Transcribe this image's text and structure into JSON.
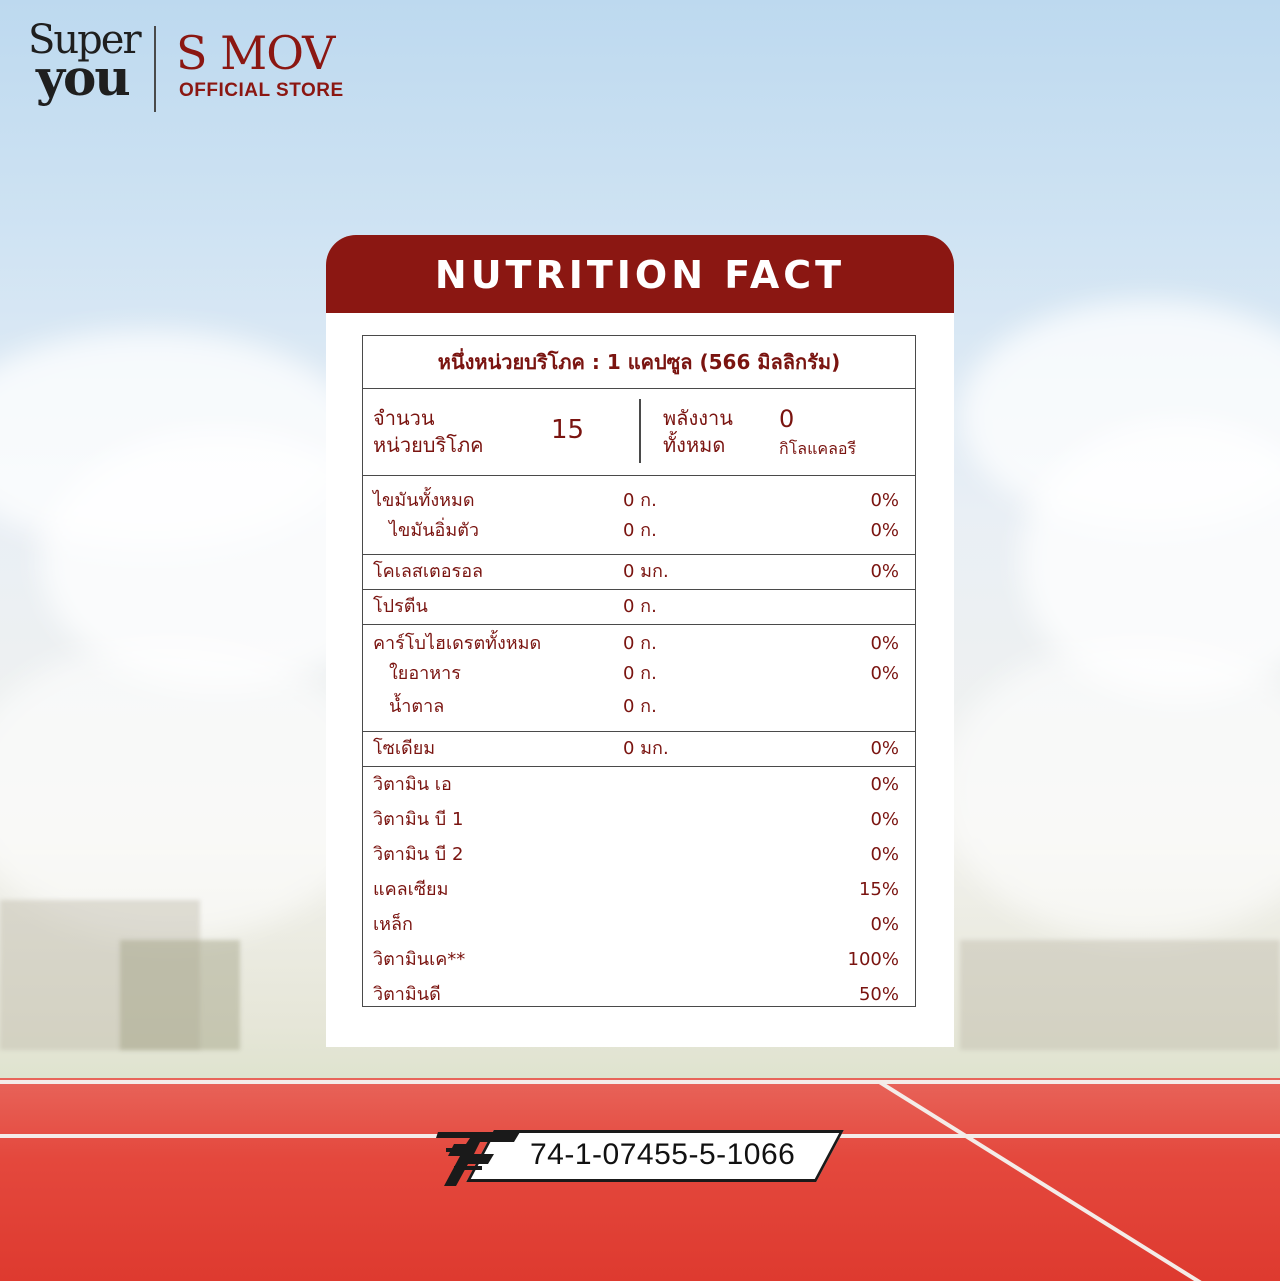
{
  "brand": {
    "superyou_line1": "Super",
    "superyou_line2": "you",
    "smov": "S MOV",
    "store": "OFFICIAL STORE"
  },
  "nutrition": {
    "title": "NUTRITION FACT",
    "serving_size": "หนึ่งหน่วยบริโภค :  1 แคปซูล (566 มิลลิกรัม)",
    "servings_label_1": "จำนวน",
    "servings_label_2": "หน่วยบริโภค",
    "servings_value": "15",
    "energy_label_1": "พลังงาน",
    "energy_label_2": "ทั้งหมด",
    "energy_value": "0",
    "energy_unit": "กิโลแคลอรี",
    "fat": [
      {
        "name": "ไขมันทั้งหมด",
        "amount": "0 ก.",
        "percent": "0%"
      },
      {
        "name": "ไขมันอิ่มตัว",
        "amount": "0 ก.",
        "percent": "0%"
      }
    ],
    "cholesterol": {
      "name": "โคเลสเตอรอล",
      "amount": "0 มก.",
      "percent": "0%"
    },
    "protein": {
      "name": "โปรตีน",
      "amount": "0 ก.",
      "percent": ""
    },
    "carbs": [
      {
        "name": "คาร์โบไฮเดรตทั้งหมด",
        "amount": "0 ก.",
        "percent": "0%"
      },
      {
        "name": "ใยอาหาร",
        "amount": "0 ก.",
        "percent": "0%"
      },
      {
        "name": "น้ำตาล",
        "amount": "0 ก.",
        "percent": ""
      }
    ],
    "sodium": {
      "name": "โซเดียม",
      "amount": "0 มก.",
      "percent": "0%"
    },
    "vitamins": [
      {
        "name": "วิตามิน เอ",
        "percent": "0%"
      },
      {
        "name": "วิตามิน บี 1",
        "percent": "0%"
      },
      {
        "name": "วิตามิน บี 2",
        "percent": "0%"
      },
      {
        "name": "แคลเซียม",
        "percent": "15%"
      },
      {
        "name": "เหล็ก",
        "percent": "0%"
      },
      {
        "name": "วิตามินเค**",
        "percent": "100%"
      },
      {
        "name": "วิตามินดี",
        "percent": "50%"
      }
    ]
  },
  "registration": {
    "number": "74-1-07455-5-1066",
    "icon": "fda-mark-icon"
  },
  "colors": {
    "brand_red": "#8b1712",
    "text_red": "#7a1410",
    "track_red": "#e4483d"
  }
}
